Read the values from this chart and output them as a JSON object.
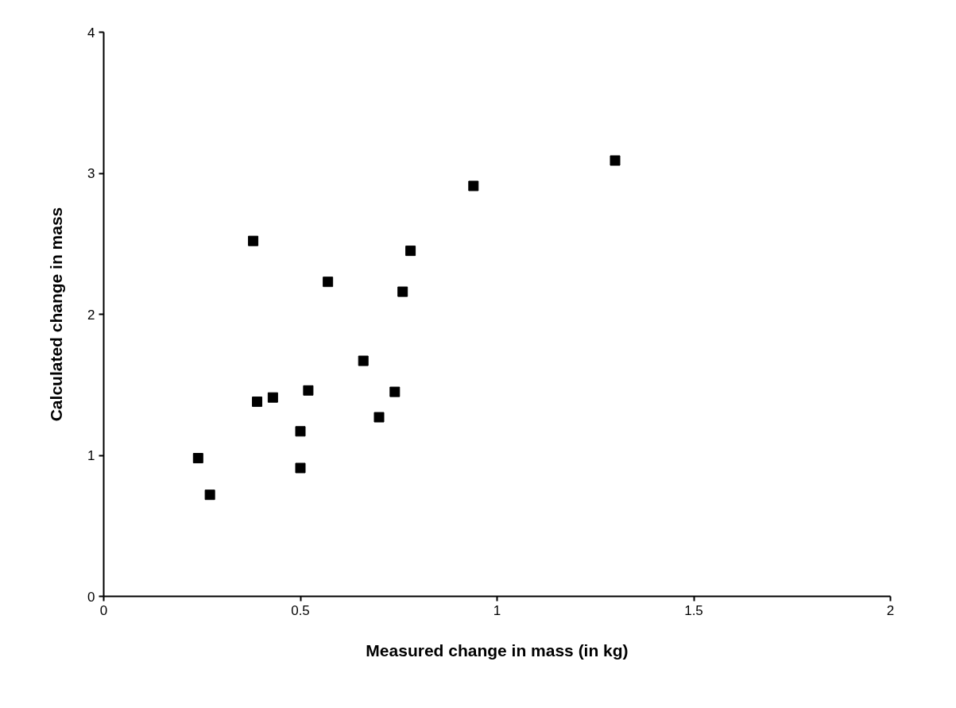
{
  "chart_data": {
    "type": "scatter",
    "xlabel": "Measured change in mass (in kg)",
    "ylabel": "Calculated change in mass",
    "x": [
      0.38,
      0.94,
      1.3,
      0.78,
      0.57,
      0.76,
      0.66,
      0.52,
      0.74,
      0.43,
      0.39,
      0.7,
      0.5,
      0.24,
      0.5,
      0.27
    ],
    "series": [
      {
        "color": "#000000",
        "values": [
          2.52,
          2.91,
          3.09,
          2.45,
          2.23,
          2.16,
          1.67,
          1.46,
          1.45,
          1.41,
          1.38,
          1.27,
          1.17,
          0.98,
          0.91,
          0.72
        ]
      }
    ],
    "xlim": [
      0,
      2
    ],
    "ylim": [
      0,
      4
    ],
    "xticks": [
      0,
      0.5,
      1,
      1.5,
      2
    ],
    "yticks": [
      0,
      1,
      2,
      3,
      4
    ],
    "marker": "square",
    "grid": false
  }
}
